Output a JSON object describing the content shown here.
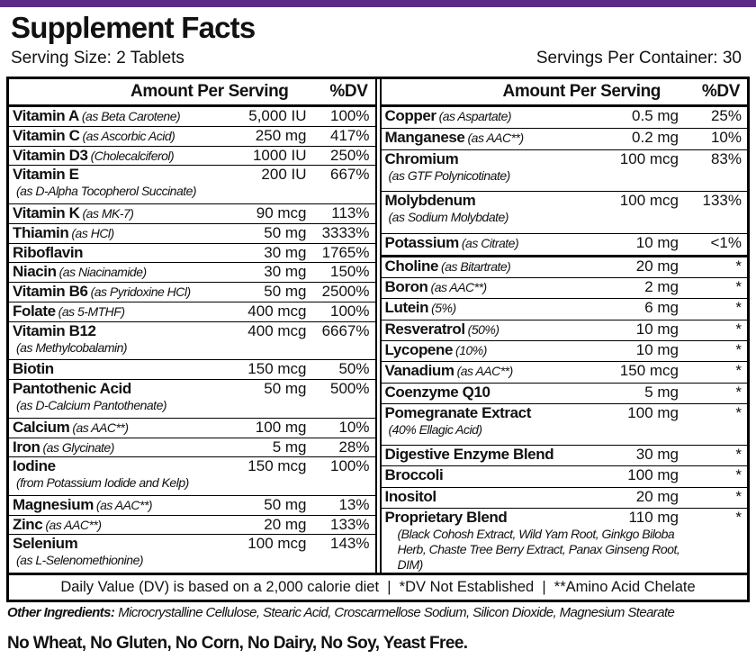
{
  "title": "Supplement Facts",
  "serving_size": "Serving Size: 2 Tablets",
  "servings_per_container": "Servings Per Container: 30",
  "left": {
    "headers": [
      "Amount Per Serving",
      "%DV"
    ],
    "groups": [
      [
        {
          "name": "Vitamin A",
          "source": "(as Beta Carotene)",
          "amount": "5,000 IU",
          "dv": "100%"
        },
        {
          "name": "Vitamin C",
          "source": "(as Ascorbic Acid)",
          "amount": "250 mg",
          "dv": "417%"
        },
        {
          "name": "Vitamin D3",
          "source": "(Cholecalciferol)",
          "amount": "1000 IU",
          "dv": "250%"
        },
        {
          "name": "Vitamin E",
          "sub": "(as D-Alpha Tocopherol Succinate)",
          "amount": "200 IU",
          "dv": "667%"
        },
        {
          "name": "Vitamin K",
          "source": "(as MK-7)",
          "amount": "90 mcg",
          "dv": "113%"
        },
        {
          "name": "Thiamin",
          "source": "(as HCl)",
          "amount": "50 mg",
          "dv": "3333%"
        },
        {
          "name": "Riboflavin",
          "amount": "30 mg",
          "dv": "1765%"
        },
        {
          "name": "Niacin",
          "source": "(as Niacinamide)",
          "amount": "30 mg",
          "dv": "150%"
        },
        {
          "name": "Vitamin B6",
          "source": "(as Pyridoxine HCl)",
          "amount": "50 mg",
          "dv": "2500%"
        },
        {
          "name": "Folate",
          "source": "(as 5-MTHF)",
          "amount": "400 mcg",
          "dv": "100%"
        },
        {
          "name": "Vitamin B12",
          "sub": "(as Methylcobalamin)",
          "amount": "400 mcg",
          "dv": "6667%"
        },
        {
          "name": "Biotin",
          "amount": "150 mcg",
          "dv": "50%"
        },
        {
          "name": "Pantothenic Acid",
          "sub": "(as D-Calcium Pantothenate)",
          "amount": "50 mg",
          "dv": "500%"
        },
        {
          "name": "Calcium",
          "source": "(as AAC**)",
          "amount": "100 mg",
          "dv": "10%"
        },
        {
          "name": "Iron",
          "source": "(as Glycinate)",
          "amount": "5 mg",
          "dv": "28%"
        },
        {
          "name": "Iodine",
          "sub": "(from Potassium Iodide and Kelp)",
          "amount": "150 mcg",
          "dv": "100%"
        },
        {
          "name": "Magnesium",
          "source": "(as AAC**)",
          "amount": "50 mg",
          "dv": "13%"
        },
        {
          "name": "Zinc",
          "source": "(as AAC**)",
          "amount": "20 mg",
          "dv": "133%"
        },
        {
          "name": "Selenium",
          "sub": "(as L-Selenomethionine)",
          "amount": "100 mcg",
          "dv": "143%"
        }
      ]
    ]
  },
  "right": {
    "headers": [
      "Amount Per Serving",
      "%DV"
    ],
    "groups": [
      [
        {
          "name": "Copper",
          "source": "(as Aspartate)",
          "amount": "0.5 mg",
          "dv": "25%"
        },
        {
          "name": "Manganese",
          "source": "(as AAC**)",
          "amount": "0.2 mg",
          "dv": "10%"
        },
        {
          "name": "Chromium",
          "sub": "(as GTF Polynicotinate)",
          "amount": "100 mcg",
          "dv": "83%"
        },
        {
          "name": "Molybdenum",
          "sub": "(as Sodium Molybdate)",
          "amount": "100 mcg",
          "dv": "133%"
        },
        {
          "name": "Potassium",
          "source": "(as Citrate)",
          "amount": "10 mg",
          "dv": "<1%"
        }
      ],
      [
        {
          "name": "Choline",
          "source": "(as Bitartrate)",
          "amount": "20 mg",
          "dv": "*"
        },
        {
          "name": "Boron",
          "source": "(as AAC**)",
          "amount": "2 mg",
          "dv": "*"
        },
        {
          "name": "Lutein",
          "source": "(5%)",
          "amount": "6 mg",
          "dv": "*"
        },
        {
          "name": "Resveratrol",
          "source": "(50%)",
          "amount": "10 mg",
          "dv": "*"
        },
        {
          "name": "Lycopene",
          "source": "(10%)",
          "amount": "10 mg",
          "dv": "*"
        },
        {
          "name": "Vanadium",
          "source": "(as AAC**)",
          "amount": "150 mcg",
          "dv": "*"
        },
        {
          "name": "Coenzyme Q10",
          "amount": "5 mg",
          "dv": "*"
        },
        {
          "name": "Pomegranate Extract",
          "sub": "(40% Ellagic Acid)",
          "amount": "100 mg",
          "dv": "*"
        },
        {
          "name": "Digestive Enzyme Blend",
          "amount": "30 mg",
          "dv": "*"
        },
        {
          "name": "Broccoli",
          "amount": "100 mg",
          "dv": "*"
        },
        {
          "name": "Inositol",
          "amount": "20 mg",
          "dv": "*"
        },
        {
          "name": "Proprietary Blend",
          "sub": "(Black Cohosh Extract, Wild Yam Root, Ginkgo Biloba Herb, Chaste Tree Berry Extract, Panax Ginseng Root, DIM)",
          "amount": "110 mg",
          "dv": "*"
        }
      ]
    ]
  },
  "footnote": "Daily Value (DV) is based on a 2,000 calorie diet  |  *DV Not Established  |  **Amino Acid Chelate",
  "other_ingredients_label": "Other Ingredients:",
  "other_ingredients": "Microcrystalline Cellulose, Stearic Acid, Croscarmellose Sodium, Silicon Dioxide, Magnesium Stearate",
  "free_from": "No Wheat, No Gluten, No Corn, No Dairy, No Soy, Yeast Free."
}
